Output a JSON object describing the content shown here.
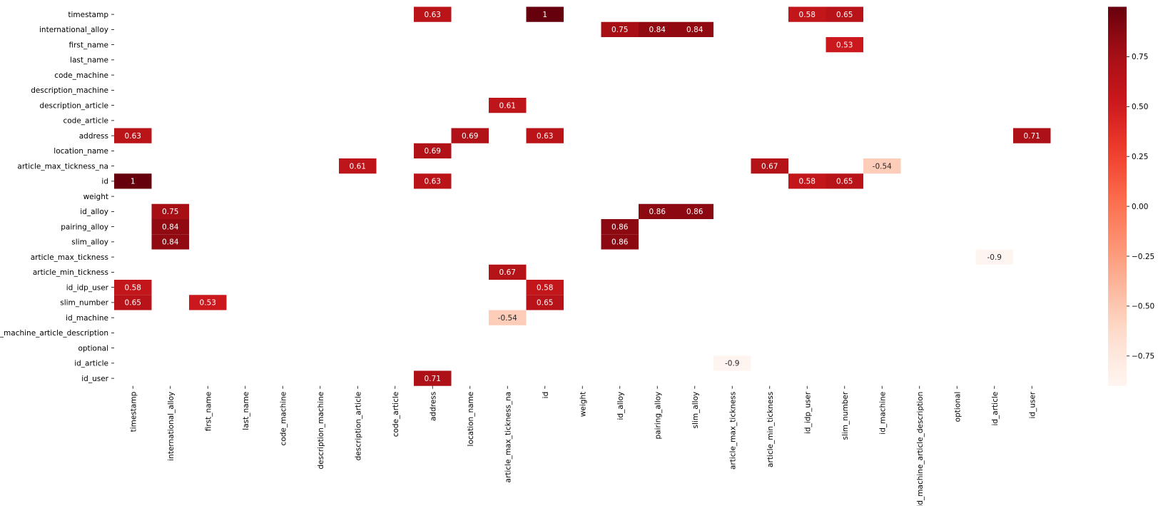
{
  "chart_data": {
    "type": "heatmap",
    "title": "",
    "xlabel": "",
    "ylabel": "",
    "labels": [
      "timestamp",
      "international_alloy",
      "first_name",
      "last_name",
      "code_machine",
      "description_machine",
      "description_article",
      "code_article",
      "address",
      "location_name",
      "article_max_tickness_na",
      "id",
      "weight",
      "id_alloy",
      "pairing_alloy",
      "slim_alloy",
      "article_max_tickness",
      "article_min_tickness",
      "id_idp_user",
      "slim_number",
      "id_machine",
      "id_machine_article_description",
      "optional",
      "id_article",
      "id_user"
    ],
    "cells": [
      {
        "row": "timestamp",
        "col": "address",
        "value": 0.63,
        "label": "0.63"
      },
      {
        "row": "timestamp",
        "col": "id",
        "value": 1,
        "label": "1"
      },
      {
        "row": "timestamp",
        "col": "id_idp_user",
        "value": 0.58,
        "label": "0.58"
      },
      {
        "row": "timestamp",
        "col": "slim_number",
        "value": 0.65,
        "label": "0.65"
      },
      {
        "row": "international_alloy",
        "col": "id_alloy",
        "value": 0.75,
        "label": "0.75"
      },
      {
        "row": "international_alloy",
        "col": "pairing_alloy",
        "value": 0.84,
        "label": "0.84"
      },
      {
        "row": "international_alloy",
        "col": "slim_alloy",
        "value": 0.84,
        "label": "0.84"
      },
      {
        "row": "first_name",
        "col": "slim_number",
        "value": 0.53,
        "label": "0.53"
      },
      {
        "row": "description_article",
        "col": "article_max_tickness_na",
        "value": 0.61,
        "label": "0.61"
      },
      {
        "row": "address",
        "col": "timestamp",
        "value": 0.63,
        "label": "0.63"
      },
      {
        "row": "address",
        "col": "location_name",
        "value": 0.69,
        "label": "0.69"
      },
      {
        "row": "address",
        "col": "id",
        "value": 0.63,
        "label": "0.63"
      },
      {
        "row": "address",
        "col": "id_user",
        "value": 0.71,
        "label": "0.71"
      },
      {
        "row": "location_name",
        "col": "address",
        "value": 0.69,
        "label": "0.69"
      },
      {
        "row": "article_max_tickness_na",
        "col": "description_article",
        "value": 0.61,
        "label": "0.61"
      },
      {
        "row": "article_max_tickness_na",
        "col": "article_min_tickness",
        "value": 0.67,
        "label": "0.67"
      },
      {
        "row": "article_max_tickness_na",
        "col": "id_machine",
        "value": -0.54,
        "label": "-0.54"
      },
      {
        "row": "id",
        "col": "timestamp",
        "value": 1,
        "label": "1"
      },
      {
        "row": "id",
        "col": "address",
        "value": 0.63,
        "label": "0.63"
      },
      {
        "row": "id",
        "col": "id_idp_user",
        "value": 0.58,
        "label": "0.58"
      },
      {
        "row": "id",
        "col": "slim_number",
        "value": 0.65,
        "label": "0.65"
      },
      {
        "row": "id_alloy",
        "col": "international_alloy",
        "value": 0.75,
        "label": "0.75"
      },
      {
        "row": "id_alloy",
        "col": "pairing_alloy",
        "value": 0.86,
        "label": "0.86"
      },
      {
        "row": "id_alloy",
        "col": "slim_alloy",
        "value": 0.86,
        "label": "0.86"
      },
      {
        "row": "pairing_alloy",
        "col": "international_alloy",
        "value": 0.84,
        "label": "0.84"
      },
      {
        "row": "pairing_alloy",
        "col": "id_alloy",
        "value": 0.86,
        "label": "0.86"
      },
      {
        "row": "slim_alloy",
        "col": "international_alloy",
        "value": 0.84,
        "label": "0.84"
      },
      {
        "row": "slim_alloy",
        "col": "id_alloy",
        "value": 0.86,
        "label": "0.86"
      },
      {
        "row": "article_max_tickness",
        "col": "id_article",
        "value": -0.9,
        "label": "-0.9"
      },
      {
        "row": "article_min_tickness",
        "col": "article_max_tickness_na",
        "value": 0.67,
        "label": "0.67"
      },
      {
        "row": "id_idp_user",
        "col": "timestamp",
        "value": 0.58,
        "label": "0.58"
      },
      {
        "row": "id_idp_user",
        "col": "id",
        "value": 0.58,
        "label": "0.58"
      },
      {
        "row": "slim_number",
        "col": "timestamp",
        "value": 0.65,
        "label": "0.65"
      },
      {
        "row": "slim_number",
        "col": "first_name",
        "value": 0.53,
        "label": "0.53"
      },
      {
        "row": "slim_number",
        "col": "id",
        "value": 0.65,
        "label": "0.65"
      },
      {
        "row": "id_machine",
        "col": "article_max_tickness_na",
        "value": -0.54,
        "label": "-0.54"
      },
      {
        "row": "id_article",
        "col": "article_max_tickness",
        "value": -0.9,
        "label": "-0.9"
      },
      {
        "row": "id_user",
        "col": "address",
        "value": 0.71,
        "label": "0.71"
      }
    ],
    "colorbar": {
      "range": [
        -0.9,
        1
      ],
      "ticks": [
        0.75,
        0.5,
        0.25,
        0.0,
        -0.25,
        -0.5,
        -0.75
      ],
      "tick_labels": [
        "0.75",
        "0.50",
        "0.25",
        "0.00",
        "−0.25",
        "−0.50",
        "−0.75"
      ],
      "colormap": "Reds"
    },
    "grid": false,
    "legend": "colorbar-right"
  }
}
